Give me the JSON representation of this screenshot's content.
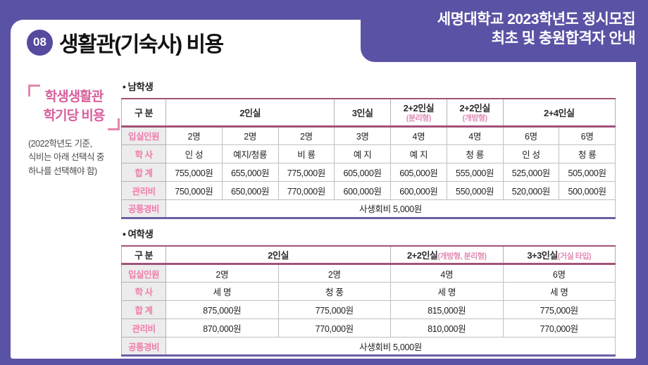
{
  "page": {
    "badge": "08",
    "title": "생활관(기숙사) 비용",
    "header_line1": "세명대학교 2023학년도 정시모집",
    "header_line2": "최초 및 충원합격자 안내"
  },
  "sidebar": {
    "title_line1": "학생생활관",
    "title_line2": "학기당 비용",
    "note_line1": "(2022학년도 기준,",
    "note_line2": "식비는 아래 선택식 중",
    "note_line3": "하나를 선택해야 함)"
  },
  "colors": {
    "background_purple": "#5a52a4",
    "badge_purple": "#544b9e",
    "accent_pink": "#f07cab",
    "sidebar_pink": "#d8609d",
    "table_header_border": "#a25279",
    "table_bottom_border": "#6c5fa6",
    "label_cell_bg": "#ececec"
  },
  "tables": [
    {
      "name": "male-dorm-cost-table",
      "section_label": "• 남학생",
      "col_count": 8,
      "header": [
        {
          "label": "구 분",
          "sub": "",
          "span": 1,
          "stack": false
        },
        {
          "label": "2인실",
          "sub": "",
          "span": 3,
          "stack": false
        },
        {
          "label": "3인실",
          "sub": "",
          "span": 1,
          "stack": false
        },
        {
          "label": "2+2인실",
          "sub": "(분리형)",
          "span": 1,
          "stack": true
        },
        {
          "label": "2+2인실",
          "sub": "(개방형)",
          "span": 1,
          "stack": true
        },
        {
          "label": "2+4인실",
          "sub": "",
          "span": 2,
          "stack": false
        }
      ],
      "rows": [
        {
          "label": "입실인원",
          "cells": [
            "2명",
            "2명",
            "2명",
            "3명",
            "4명",
            "4명",
            "6명",
            "6명"
          ]
        },
        {
          "label": "학 사",
          "cells": [
            "인 성",
            "예지/청룡",
            "비 룡",
            "예 지",
            "예 지",
            "청 룡",
            "인 성",
            "청 룡"
          ]
        },
        {
          "label": "합 계",
          "cells": [
            "755,000원",
            "655,000원",
            "775,000원",
            "605,000원",
            "605,000원",
            "555,000원",
            "525,000원",
            "505,000원"
          ]
        },
        {
          "label": "관리비",
          "cells": [
            "750,000원",
            "650,000원",
            "770,000원",
            "600,000원",
            "600,000원",
            "550,000원",
            "520,000원",
            "500,000원"
          ]
        },
        {
          "label": "공통경비",
          "span_all": true,
          "cells": [
            "사생회비 5,000원"
          ]
        }
      ]
    },
    {
      "name": "female-dorm-cost-table",
      "section_label": "• 여학생",
      "col_count": 4,
      "header": [
        {
          "label": "구 분",
          "sub": "",
          "span": 1,
          "stack": false
        },
        {
          "label": "2인실",
          "sub": "",
          "span": 2,
          "stack": false
        },
        {
          "label": "2+2인실",
          "sub": "(개방형, 분리형)",
          "span": 1,
          "stack": false
        },
        {
          "label": "3+3인실",
          "sub": "(거실 타입)",
          "span": 1,
          "stack": false
        }
      ],
      "rows": [
        {
          "label": "입실인원",
          "cells": [
            "2명",
            "2명",
            "4명",
            "6명"
          ]
        },
        {
          "label": "학 사",
          "cells": [
            "세 명",
            "청 풍",
            "세 명",
            "세 명"
          ]
        },
        {
          "label": "합 계",
          "cells": [
            "875,000원",
            "775,000원",
            "815,000원",
            "775,000원"
          ]
        },
        {
          "label": "관리비",
          "cells": [
            "870,000원",
            "770,000원",
            "810,000원",
            "770,000원"
          ]
        },
        {
          "label": "공통경비",
          "span_all": true,
          "cells": [
            "사생회비 5,000원"
          ]
        }
      ]
    }
  ]
}
